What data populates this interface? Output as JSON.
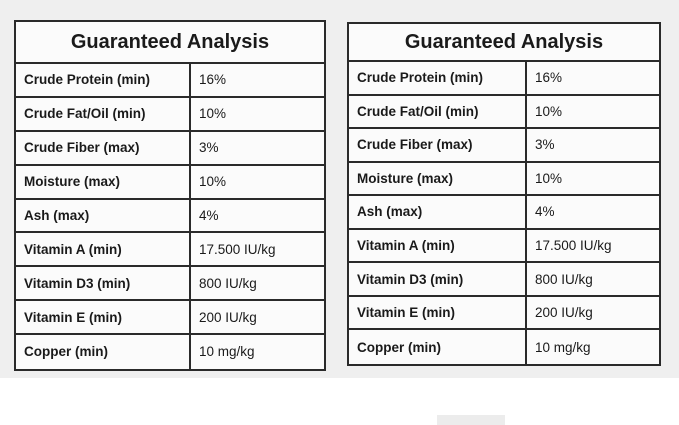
{
  "tables": [
    {
      "title": "Guaranteed Analysis",
      "rows": [
        [
          "Crude Protein (min)",
          "16%"
        ],
        [
          "Crude Fat/Oil (min)",
          "10%"
        ],
        [
          "Crude Fiber (max)",
          "3%"
        ],
        [
          "Moisture (max)",
          "10%"
        ],
        [
          "Ash (max)",
          "4%"
        ],
        [
          "Vitamin A (min)",
          "17.500 IU/kg"
        ],
        [
          "Vitamin D3 (min)",
          "800 IU/kg"
        ],
        [
          "Vitamin E (min)",
          "200 IU/kg"
        ],
        [
          "Copper (min)",
          "10 mg/kg"
        ]
      ]
    },
    {
      "title": "Guaranteed Analysis",
      "rows": [
        [
          "Crude Protein (min)",
          "16%"
        ],
        [
          "Crude Fat/Oil (min)",
          "10%"
        ],
        [
          "Crude Fiber (max)",
          "3%"
        ],
        [
          "Moisture (max)",
          "10%"
        ],
        [
          "Ash (max)",
          "4%"
        ],
        [
          "Vitamin A (min)",
          "17.500 IU/kg"
        ],
        [
          "Vitamin D3 (min)",
          "800 IU/kg"
        ],
        [
          "Vitamin E (min)",
          "200 IU/kg"
        ],
        [
          "Copper (min)",
          "10 mg/kg"
        ]
      ]
    }
  ]
}
